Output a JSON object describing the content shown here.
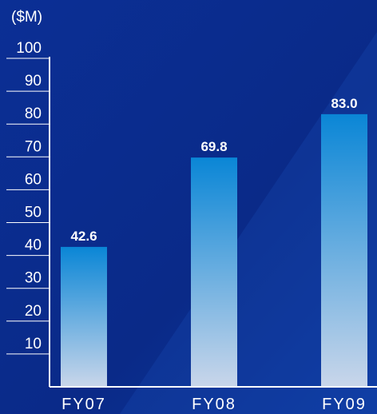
{
  "chart_data": {
    "type": "bar",
    "unit_label": "($M)",
    "categories": [
      "FY07",
      "FY08",
      "FY09"
    ],
    "values": [
      42.6,
      69.8,
      83.0
    ],
    "value_labels": [
      "42.6",
      "69.8",
      "83.0"
    ],
    "yticks": [
      "10",
      "20",
      "30",
      "40",
      "50",
      "60",
      "70",
      "80",
      "90",
      "100"
    ],
    "ylim": [
      0,
      100
    ],
    "grid": false,
    "colors": {
      "background": "#0a2a8c",
      "bar_top": "#0a86d6",
      "bar_bottom": "#c9d6ea",
      "axis": "#ffffff"
    }
  }
}
